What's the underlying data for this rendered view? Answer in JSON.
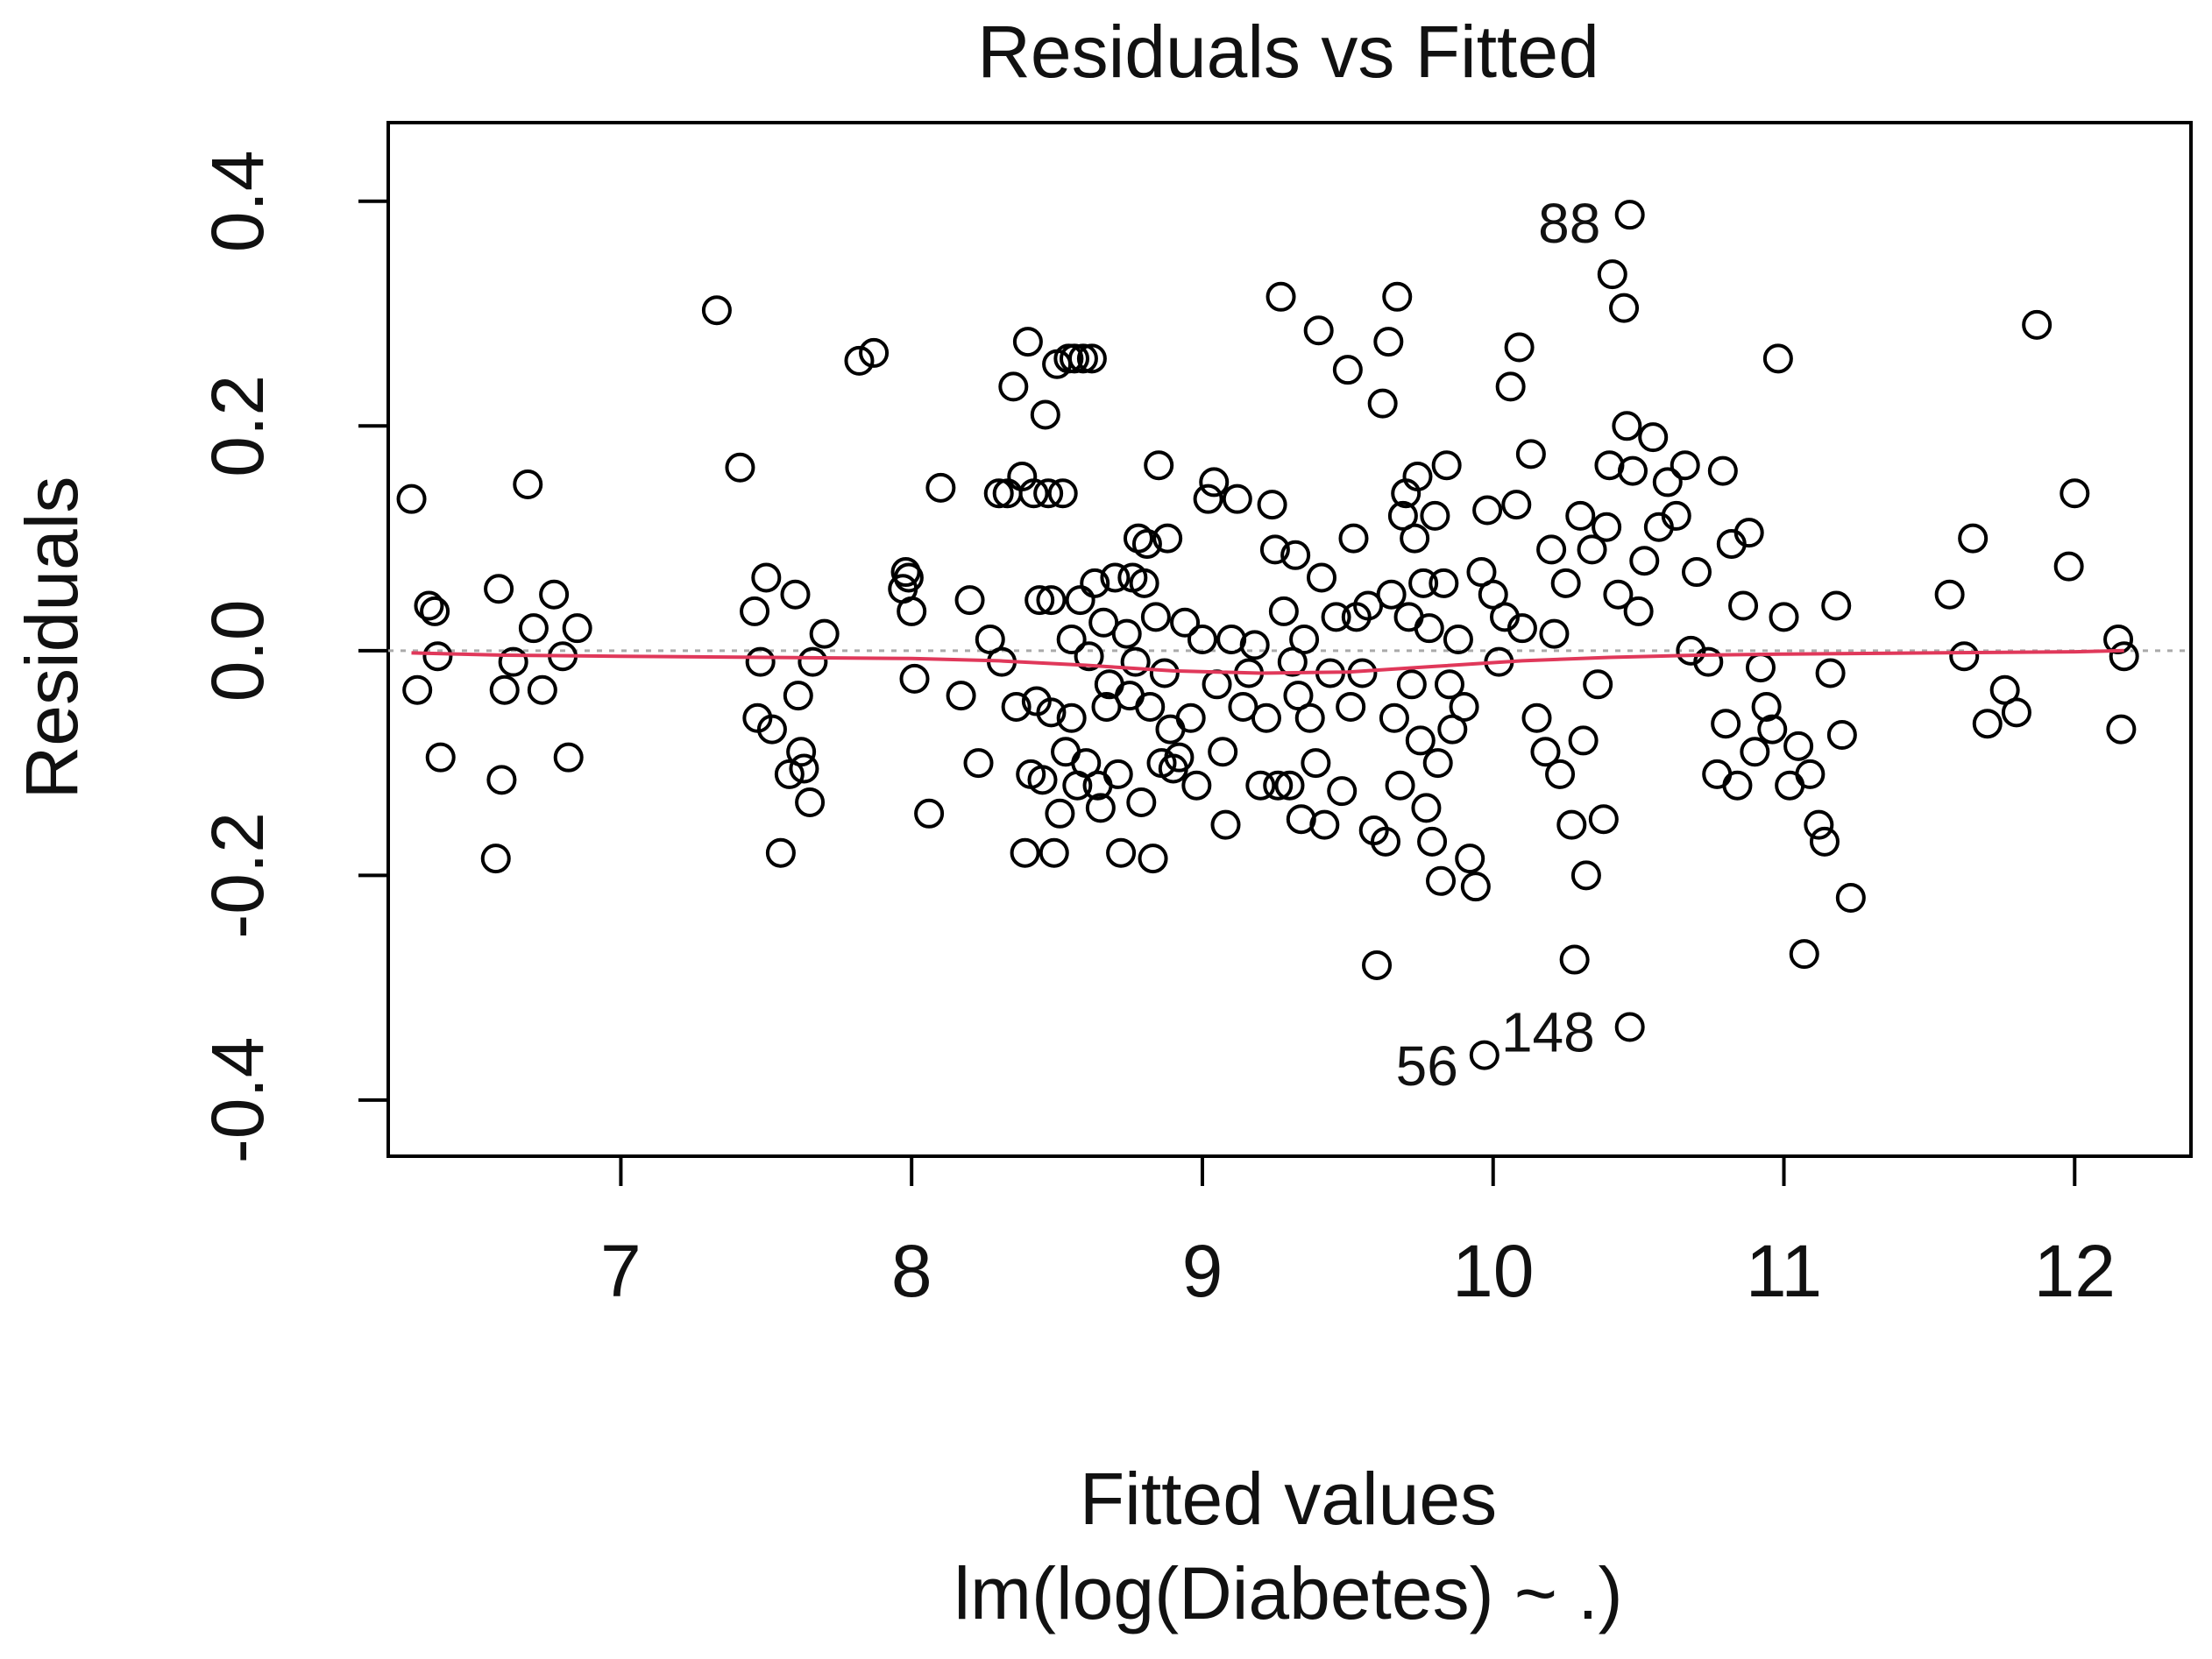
{
  "chart_data": {
    "type": "scatter",
    "title": "Residuals vs Fitted",
    "xlabel": "Fitted values",
    "xlabel2": "lm(log(Diabetes) ~ .)",
    "ylabel": "Residuals",
    "xlim": [
      6.2,
      12.4
    ],
    "ylim": [
      -0.45,
      0.47
    ],
    "x_ticks": [
      7,
      8,
      9,
      10,
      11,
      12
    ],
    "x_tick_labels": [
      "7",
      "8",
      "9",
      "10",
      "11",
      "12"
    ],
    "y_ticks": [
      -0.4,
      -0.2,
      0.0,
      0.2,
      0.4
    ],
    "y_tick_labels": [
      "-0.4",
      "-0.2",
      "0.0",
      "0.2",
      "0.4"
    ],
    "reference_line": {
      "y": 0.0,
      "style": "dotted",
      "color": "#aaaaaa"
    },
    "smooth_color": "#e0385a",
    "point_color": "#000000",
    "smooth": [
      [
        6.28,
        -0.002
      ],
      [
        6.6,
        -0.004
      ],
      [
        7.0,
        -0.005
      ],
      [
        7.5,
        -0.006
      ],
      [
        8.0,
        -0.007
      ],
      [
        8.3,
        -0.009
      ],
      [
        8.6,
        -0.013
      ],
      [
        8.9,
        -0.018
      ],
      [
        9.2,
        -0.02
      ],
      [
        9.5,
        -0.019
      ],
      [
        9.8,
        -0.014
      ],
      [
        10.1,
        -0.009
      ],
      [
        10.4,
        -0.006
      ],
      [
        10.7,
        -0.004
      ],
      [
        11.0,
        -0.003
      ],
      [
        11.5,
        -0.002
      ],
      [
        12.0,
        -0.001
      ],
      [
        12.17,
        0.0
      ]
    ],
    "labels": [
      {
        "text": "88",
        "x": 10.46,
        "y": 0.385
      },
      {
        "text": "148",
        "x": 10.44,
        "y": -0.335
      },
      {
        "text": "56",
        "x": 9.97,
        "y": -0.365
      }
    ],
    "points": [
      [
        6.28,
        0.135
      ],
      [
        6.3,
        -0.035
      ],
      [
        6.34,
        0.04
      ],
      [
        6.36,
        0.035
      ],
      [
        6.37,
        -0.005
      ],
      [
        6.38,
        -0.095
      ],
      [
        6.57,
        -0.185
      ],
      [
        6.58,
        0.055
      ],
      [
        6.59,
        -0.115
      ],
      [
        6.6,
        -0.035
      ],
      [
        6.63,
        -0.01
      ],
      [
        6.68,
        0.148
      ],
      [
        6.7,
        0.02
      ],
      [
        6.73,
        -0.035
      ],
      [
        6.77,
        0.05
      ],
      [
        6.8,
        -0.005
      ],
      [
        6.82,
        -0.095
      ],
      [
        6.85,
        0.02
      ],
      [
        7.33,
        0.303
      ],
      [
        7.41,
        0.163
      ],
      [
        7.46,
        0.035
      ],
      [
        7.47,
        -0.06
      ],
      [
        7.48,
        -0.01
      ],
      [
        7.5,
        0.065
      ],
      [
        7.52,
        -0.07
      ],
      [
        7.55,
        -0.18
      ],
      [
        7.58,
        -0.11
      ],
      [
        7.6,
        0.05
      ],
      [
        7.61,
        -0.04
      ],
      [
        7.62,
        -0.09
      ],
      [
        7.63,
        -0.105
      ],
      [
        7.65,
        -0.135
      ],
      [
        7.66,
        -0.01
      ],
      [
        7.7,
        0.015
      ],
      [
        7.82,
        0.258
      ],
      [
        7.87,
        0.265
      ],
      [
        7.97,
        0.055
      ],
      [
        7.98,
        0.07
      ],
      [
        7.99,
        0.065
      ],
      [
        8.0,
        0.035
      ],
      [
        8.01,
        -0.025
      ],
      [
        8.06,
        -0.145
      ],
      [
        8.1,
        0.145
      ],
      [
        8.17,
        -0.04
      ],
      [
        8.2,
        0.045
      ],
      [
        8.23,
        -0.1
      ],
      [
        8.27,
        0.01
      ],
      [
        8.3,
        0.14
      ],
      [
        8.31,
        -0.01
      ],
      [
        8.33,
        0.14
      ],
      [
        8.35,
        0.235
      ],
      [
        8.36,
        -0.05
      ],
      [
        8.38,
        0.155
      ],
      [
        8.39,
        -0.18
      ],
      [
        8.4,
        0.275
      ],
      [
        8.41,
        -0.11
      ],
      [
        8.42,
        0.14
      ],
      [
        8.43,
        -0.045
      ],
      [
        8.44,
        0.045
      ],
      [
        8.45,
        -0.115
      ],
      [
        8.46,
        0.21
      ],
      [
        8.47,
        0.14
      ],
      [
        8.48,
        -0.055
      ],
      [
        8.48,
        0.045
      ],
      [
        8.49,
        -0.18
      ],
      [
        8.5,
        0.255
      ],
      [
        8.51,
        -0.145
      ],
      [
        8.52,
        0.14
      ],
      [
        8.53,
        -0.09
      ],
      [
        8.54,
        0.26
      ],
      [
        8.55,
        0.01
      ],
      [
        8.55,
        -0.06
      ],
      [
        8.56,
        0.26
      ],
      [
        8.57,
        -0.12
      ],
      [
        8.58,
        0.045
      ],
      [
        8.59,
        0.26
      ],
      [
        8.6,
        -0.1
      ],
      [
        8.61,
        -0.005
      ],
      [
        8.62,
        0.26
      ],
      [
        8.63,
        0.06
      ],
      [
        8.64,
        -0.12
      ],
      [
        8.65,
        -0.14
      ],
      [
        8.66,
        0.025
      ],
      [
        8.67,
        -0.05
      ],
      [
        8.68,
        -0.03
      ],
      [
        8.7,
        0.065
      ],
      [
        8.71,
        -0.11
      ],
      [
        8.72,
        -0.18
      ],
      [
        8.74,
        0.015
      ],
      [
        8.75,
        -0.04
      ],
      [
        8.76,
        0.065
      ],
      [
        8.77,
        -0.01
      ],
      [
        8.78,
        0.1
      ],
      [
        8.79,
        -0.135
      ],
      [
        8.8,
        0.06
      ],
      [
        8.81,
        0.095
      ],
      [
        8.82,
        -0.05
      ],
      [
        8.83,
        -0.185
      ],
      [
        8.84,
        0.03
      ],
      [
        8.85,
        0.165
      ],
      [
        8.86,
        -0.1
      ],
      [
        8.87,
        -0.02
      ],
      [
        8.88,
        0.1
      ],
      [
        8.89,
        -0.07
      ],
      [
        8.9,
        -0.105
      ],
      [
        8.92,
        -0.095
      ],
      [
        8.94,
        0.025
      ],
      [
        8.96,
        -0.06
      ],
      [
        8.98,
        -0.12
      ],
      [
        9.0,
        0.01
      ],
      [
        9.02,
        0.135
      ],
      [
        9.04,
        0.15
      ],
      [
        9.05,
        -0.03
      ],
      [
        9.07,
        -0.09
      ],
      [
        9.08,
        -0.155
      ],
      [
        9.1,
        0.01
      ],
      [
        9.12,
        0.135
      ],
      [
        9.14,
        -0.05
      ],
      [
        9.16,
        -0.02
      ],
      [
        9.18,
        0.005
      ],
      [
        9.2,
        -0.12
      ],
      [
        9.22,
        -0.06
      ],
      [
        9.24,
        0.13
      ],
      [
        9.25,
        0.09
      ],
      [
        9.26,
        -0.12
      ],
      [
        9.27,
        0.315
      ],
      [
        9.28,
        0.035
      ],
      [
        9.3,
        -0.12
      ],
      [
        9.31,
        -0.01
      ],
      [
        9.32,
        0.085
      ],
      [
        9.33,
        -0.04
      ],
      [
        9.34,
        -0.15
      ],
      [
        9.35,
        0.01
      ],
      [
        9.37,
        -0.06
      ],
      [
        9.39,
        -0.1
      ],
      [
        9.4,
        0.285
      ],
      [
        9.41,
        0.065
      ],
      [
        9.42,
        -0.155
      ],
      [
        9.44,
        -0.02
      ],
      [
        9.46,
        0.03
      ],
      [
        9.48,
        -0.125
      ],
      [
        9.5,
        0.25
      ],
      [
        9.51,
        -0.05
      ],
      [
        9.52,
        0.1
      ],
      [
        9.53,
        0.03
      ],
      [
        9.55,
        -0.02
      ],
      [
        9.57,
        0.04
      ],
      [
        9.59,
        -0.16
      ],
      [
        9.6,
        -0.28
      ],
      [
        9.62,
        0.22
      ],
      [
        9.63,
        -0.17
      ],
      [
        9.64,
        0.275
      ],
      [
        9.65,
        0.05
      ],
      [
        9.66,
        -0.06
      ],
      [
        9.67,
        0.315
      ],
      [
        9.68,
        -0.12
      ],
      [
        9.69,
        0.12
      ],
      [
        9.7,
        0.14
      ],
      [
        9.71,
        0.03
      ],
      [
        9.72,
        -0.03
      ],
      [
        9.73,
        0.1
      ],
      [
        9.74,
        0.155
      ],
      [
        9.75,
        -0.08
      ],
      [
        9.76,
        0.06
      ],
      [
        9.77,
        -0.14
      ],
      [
        9.78,
        0.02
      ],
      [
        9.79,
        -0.17
      ],
      [
        9.8,
        0.12
      ],
      [
        9.81,
        -0.1
      ],
      [
        9.82,
        -0.205
      ],
      [
        9.83,
        0.06
      ],
      [
        9.84,
        0.165
      ],
      [
        9.85,
        -0.03
      ],
      [
        9.86,
        -0.07
      ],
      [
        9.88,
        0.01
      ],
      [
        9.9,
        -0.05
      ],
      [
        9.92,
        -0.185
      ],
      [
        9.94,
        -0.21
      ],
      [
        9.96,
        0.07
      ],
      [
        9.98,
        0.125
      ],
      [
        10.0,
        0.05
      ],
      [
        10.02,
        -0.01
      ],
      [
        10.04,
        0.03
      ],
      [
        10.06,
        0.235
      ],
      [
        10.08,
        0.13
      ],
      [
        10.09,
        0.27
      ],
      [
        10.1,
        0.02
      ],
      [
        10.13,
        0.175
      ],
      [
        10.15,
        -0.06
      ],
      [
        10.18,
        -0.09
      ],
      [
        10.2,
        0.09
      ],
      [
        10.21,
        0.015
      ],
      [
        10.23,
        -0.11
      ],
      [
        10.25,
        0.06
      ],
      [
        10.27,
        -0.155
      ],
      [
        10.28,
        -0.275
      ],
      [
        10.3,
        0.12
      ],
      [
        10.31,
        -0.08
      ],
      [
        10.32,
        -0.2
      ],
      [
        10.34,
        0.09
      ],
      [
        10.36,
        -0.03
      ],
      [
        10.38,
        -0.15
      ],
      [
        10.39,
        0.11
      ],
      [
        10.4,
        0.165
      ],
      [
        10.41,
        0.335
      ],
      [
        10.43,
        0.05
      ],
      [
        10.45,
        0.305
      ],
      [
        10.46,
        0.2
      ],
      [
        10.48,
        0.16
      ],
      [
        10.5,
        0.035
      ],
      [
        10.52,
        0.08
      ],
      [
        10.55,
        0.19
      ],
      [
        10.57,
        0.11
      ],
      [
        10.6,
        0.15
      ],
      [
        10.63,
        0.12
      ],
      [
        10.66,
        0.165
      ],
      [
        10.68,
        0.0
      ],
      [
        10.7,
        0.07
      ],
      [
        10.74,
        -0.01
      ],
      [
        10.77,
        -0.11
      ],
      [
        10.79,
        0.16
      ],
      [
        10.8,
        -0.065
      ],
      [
        10.82,
        0.095
      ],
      [
        10.84,
        -0.12
      ],
      [
        10.86,
        0.04
      ],
      [
        10.88,
        0.105
      ],
      [
        10.9,
        -0.09
      ],
      [
        10.92,
        -0.015
      ],
      [
        10.94,
        -0.05
      ],
      [
        10.96,
        -0.07
      ],
      [
        10.98,
        0.26
      ],
      [
        11.0,
        0.03
      ],
      [
        11.02,
        -0.12
      ],
      [
        11.05,
        -0.085
      ],
      [
        11.07,
        -0.27
      ],
      [
        11.09,
        -0.11
      ],
      [
        11.12,
        -0.155
      ],
      [
        11.14,
        -0.17
      ],
      [
        11.16,
        -0.02
      ],
      [
        11.18,
        0.04
      ],
      [
        11.2,
        -0.075
      ],
      [
        11.23,
        -0.22
      ],
      [
        11.57,
        0.05
      ],
      [
        11.62,
        -0.005
      ],
      [
        11.65,
        0.1
      ],
      [
        11.7,
        -0.065
      ],
      [
        11.76,
        -0.035
      ],
      [
        11.8,
        -0.055
      ],
      [
        11.87,
        0.29
      ],
      [
        11.98,
        0.075
      ],
      [
        12.0,
        0.14
      ],
      [
        12.15,
        0.01
      ],
      [
        12.16,
        -0.07
      ],
      [
        12.17,
        -0.005
      ],
      [
        10.47,
        -0.335
      ],
      [
        10.47,
        0.388
      ],
      [
        9.97,
        -0.36
      ]
    ]
  }
}
